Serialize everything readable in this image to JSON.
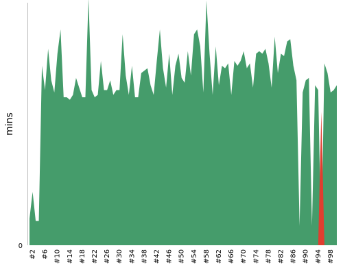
{
  "chart_data": {
    "type": "area",
    "title": "",
    "xlabel": "",
    "ylabel": "mins",
    "ylim": [
      0,
      100
    ],
    "y_ticks": [
      {
        "value": 0,
        "label": "0"
      }
    ],
    "grid": false,
    "legend": "none",
    "colors": {
      "success": "#459c6b",
      "failure": "#e03e2f",
      "axis": "#bbbbbb"
    },
    "x": [
      1,
      2,
      3,
      4,
      5,
      6,
      7,
      8,
      9,
      10,
      11,
      12,
      13,
      14,
      15,
      16,
      17,
      18,
      19,
      20,
      21,
      22,
      23,
      24,
      25,
      26,
      27,
      28,
      29,
      30,
      31,
      32,
      33,
      34,
      35,
      36,
      37,
      38,
      39,
      40,
      41,
      42,
      43,
      44,
      45,
      46,
      47,
      48,
      49,
      50,
      51,
      52,
      53,
      54,
      55,
      56,
      57,
      58,
      59,
      60,
      61,
      62,
      63,
      64,
      65,
      66,
      67,
      68,
      69,
      70,
      71,
      72,
      73,
      74,
      75,
      76,
      77,
      78,
      79,
      80,
      81,
      82,
      83,
      84,
      85,
      86,
      87,
      88,
      89,
      90,
      91,
      92,
      93,
      94,
      95,
      96,
      97,
      98,
      99,
      100
    ],
    "x_tick_labels": [
      "#2",
      "#6",
      "#10",
      "#14",
      "#18",
      "#22",
      "#26",
      "#30",
      "#34",
      "#38",
      "#42",
      "#46",
      "#50",
      "#54",
      "#58",
      "#62",
      "#66",
      "#70",
      "#74",
      "#78",
      "#82",
      "#86",
      "#90",
      "#94",
      "#98"
    ],
    "series": [
      {
        "status": "success",
        "values": [
          11,
          22,
          10,
          10,
          74,
          64,
          81,
          68,
          63,
          79,
          89,
          61,
          61,
          60,
          62,
          69,
          65,
          61,
          61,
          102,
          64,
          61,
          62,
          76,
          64,
          64,
          68,
          62,
          64,
          64,
          87,
          70,
          62,
          74,
          61,
          61,
          71,
          72,
          73,
          66,
          62,
          76,
          89,
          73,
          65,
          79,
          62,
          74,
          79,
          69,
          67,
          80,
          70,
          87,
          89,
          82,
          63,
          101,
          79,
          62,
          82,
          66,
          74,
          73,
          75,
          62,
          76,
          74,
          76,
          80,
          73,
          75,
          65,
          79,
          80,
          79,
          81,
          75,
          65,
          86,
          71,
          79,
          78,
          84,
          85,
          74,
          68,
          8,
          63,
          68,
          69,
          8,
          66,
          64,
          0,
          75,
          71,
          63,
          64,
          66
        ]
      },
      {
        "status": "failure",
        "values": [
          0,
          0,
          0,
          0,
          0,
          0,
          0,
          0,
          0,
          0,
          0,
          0,
          0,
          0,
          0,
          0,
          0,
          0,
          0,
          0,
          0,
          0,
          0,
          0,
          0,
          0,
          0,
          0,
          0,
          0,
          0,
          0,
          0,
          0,
          0,
          0,
          0,
          0,
          0,
          0,
          0,
          0,
          0,
          0,
          0,
          0,
          0,
          0,
          0,
          0,
          0,
          0,
          0,
          0,
          0,
          0,
          0,
          0,
          0,
          0,
          0,
          0,
          0,
          0,
          0,
          0,
          0,
          0,
          0,
          0,
          0,
          0,
          0,
          0,
          0,
          0,
          0,
          0,
          0,
          0,
          0,
          0,
          0,
          0,
          0,
          0,
          0,
          0,
          0,
          0,
          0,
          0,
          0,
          0,
          55,
          0,
          0,
          0,
          0,
          0
        ]
      }
    ]
  }
}
